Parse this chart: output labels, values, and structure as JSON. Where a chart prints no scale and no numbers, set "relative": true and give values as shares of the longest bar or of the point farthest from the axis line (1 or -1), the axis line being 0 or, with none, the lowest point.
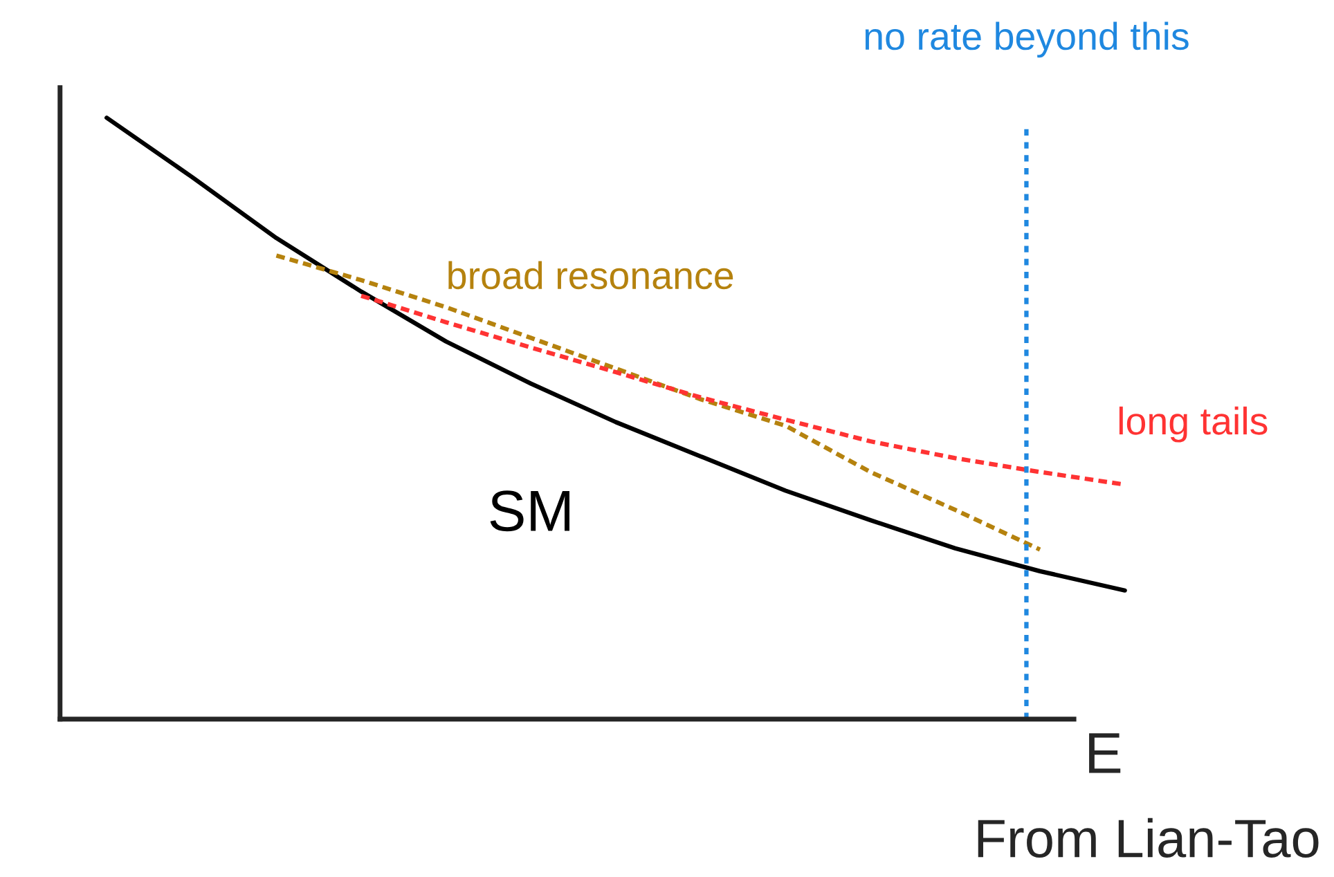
{
  "chart_data": {
    "type": "line",
    "relative": true,
    "xlabel": "E",
    "categories": [
      null,
      null,
      null,
      null,
      null,
      null,
      null,
      null,
      null,
      null,
      null,
      null,
      null
    ],
    "series": [
      {
        "name": "SM",
        "color": "#000000",
        "line_style": "solid",
        "values": [
          1,
          0.902,
          0.8,
          0.711,
          0.628,
          0.558,
          0.494,
          0.437,
          0.38,
          0.331,
          0.284,
          0.246,
          0.214
        ]
      },
      {
        "name": "broad resonance",
        "color": "#b5820e",
        "line_style": "dashed",
        "values": [
          null,
          null,
          0.771,
          0.73,
          0.685,
          0.634,
          0.583,
          0.532,
          0.488,
          0.411,
          0.348,
          0.282,
          null
        ]
      },
      {
        "name": "long tails",
        "color": "#ff3333",
        "line_style": "dashed",
        "values": [
          null,
          null,
          null,
          0.704,
          0.66,
          0.618,
          0.577,
          0.535,
          0.498,
          0.462,
          0.434,
          0.411,
          0.39
        ]
      }
    ],
    "annotations": [
      "no rate beyond this",
      "From Lian-Tao"
    ],
    "grid": false,
    "legend": false
  }
}
